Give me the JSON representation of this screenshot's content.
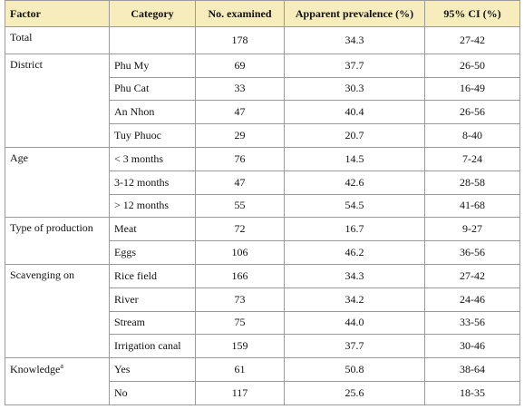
{
  "table": {
    "headers": [
      "Factor",
      "Category",
      "No. examined",
      "Apparent prevalence (%)",
      "95% CI (%)"
    ],
    "groups": [
      {
        "factor": "Total",
        "rows": [
          {
            "category": "",
            "n": "178",
            "prev": "34.3",
            "ci": "27-42"
          }
        ]
      },
      {
        "factor": "District",
        "rows": [
          {
            "category": "Phu My",
            "n": "69",
            "prev": "37.7",
            "ci": "26-50"
          },
          {
            "category": "Phu Cat",
            "n": "33",
            "prev": "30.3",
            "ci": "16-49"
          },
          {
            "category": "An Nhon",
            "n": "47",
            "prev": "40.4",
            "ci": "26-56"
          },
          {
            "category": "Tuy Phuoc",
            "n": "29",
            "prev": "20.7",
            "ci": "8-40"
          }
        ]
      },
      {
        "factor": "Age",
        "rows": [
          {
            "category": "< 3 months",
            "n": "76",
            "prev": "14.5",
            "ci": "7-24"
          },
          {
            "category": "3-12 months",
            "n": "47",
            "prev": "42.6",
            "ci": "28-58"
          },
          {
            "category": "> 12 months",
            "n": "55",
            "prev": "54.5",
            "ci": "41-68"
          }
        ]
      },
      {
        "factor": "Type of production",
        "rows": [
          {
            "category": "Meat",
            "n": "72",
            "prev": "16.7",
            "ci": "9-27"
          },
          {
            "category": "Eggs",
            "n": "106",
            "prev": "46.2",
            "ci": "36-56"
          }
        ]
      },
      {
        "factor": "Scavenging on",
        "rows": [
          {
            "category": "Rice field",
            "n": "166",
            "prev": "34.3",
            "ci": "27-42"
          },
          {
            "category": "River",
            "n": "73",
            "prev": "34.2",
            "ci": "24-46"
          },
          {
            "category": "Stream",
            "n": "75",
            "prev": "44.0",
            "ci": "33-56"
          },
          {
            "category": "Irrigation canal",
            "n": "159",
            "prev": "37.7",
            "ci": "30-46"
          }
        ]
      },
      {
        "factor": "Knowledge",
        "factor_sup": "a",
        "rows": [
          {
            "category": "Yes",
            "n": "61",
            "prev": "50.8",
            "ci": "38-64"
          },
          {
            "category": "No",
            "n": "117",
            "prev": "25.6",
            "ci": "18-35"
          }
        ]
      }
    ]
  }
}
